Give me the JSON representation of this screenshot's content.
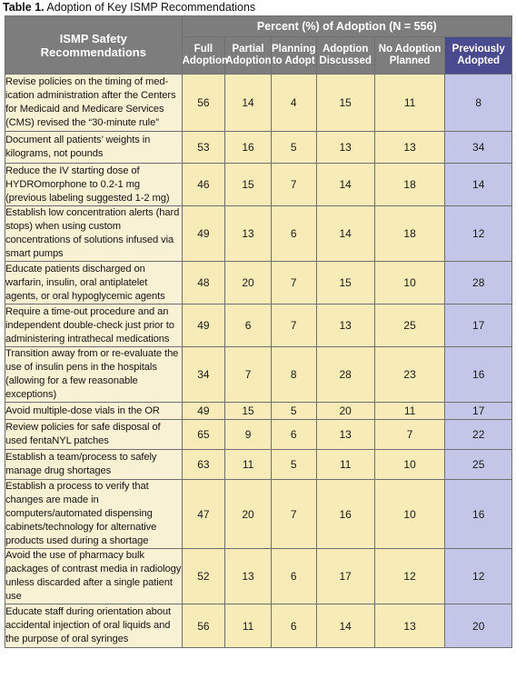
{
  "caption": {
    "label": "Table 1.",
    "text": "Adoption of Key ISMP Recommendations"
  },
  "header": {
    "rec_label": "ISMP Safety Recommendations",
    "group_label": "Percent (%) of Adoption  (N = 556)",
    "columns": [
      "Full Adoption",
      "Partial Adoption",
      "Planning to Adopt",
      "Adoption Discussed",
      "No Adoption Planned",
      "Previously Adopted"
    ]
  },
  "rows": [
    {
      "rec": "Revise policies on the timing of med-ication administration after the Centers for Medicaid and Medicare Services (CMS) revised the “30-minute rule”",
      "values": [
        56,
        14,
        4,
        15,
        11,
        8
      ]
    },
    {
      "rec": "Document all patients’ weights in kilograms, not pounds",
      "values": [
        53,
        16,
        5,
        13,
        13,
        34
      ]
    },
    {
      "rec": "Reduce the IV starting dose of HYDROmorphone to 0.2-1 mg (previous labeling suggested 1-2 mg)",
      "values": [
        46,
        15,
        7,
        14,
        18,
        14
      ]
    },
    {
      "rec": "Establish low concentration alerts (hard stops) when using custom concentrations of solutions infused via smart pumps",
      "values": [
        49,
        13,
        6,
        14,
        18,
        12
      ]
    },
    {
      "rec": "Educate patients discharged on warfarin, insulin, oral antiplatelet agents, or oral hypoglycemic agents",
      "values": [
        48,
        20,
        7,
        15,
        10,
        28
      ]
    },
    {
      "rec": "Require a time-out procedure and an independent double-check just prior to administering intrathecal medications",
      "values": [
        49,
        6,
        7,
        13,
        25,
        17
      ]
    },
    {
      "rec": "Transition away from or re-evaluate the use of insulin pens in the hospitals (allowing for a few reasonable exceptions)",
      "values": [
        34,
        7,
        8,
        28,
        23,
        16
      ]
    },
    {
      "rec": "Avoid multiple-dose vials in the OR",
      "values": [
        49,
        15,
        5,
        20,
        11,
        17
      ]
    },
    {
      "rec": "Review policies for safe disposal of used fentaNYL patches",
      "values": [
        65,
        9,
        6,
        13,
        7,
        22
      ]
    },
    {
      "rec": "Establish a team/process to safely manage drug shortages",
      "values": [
        63,
        11,
        5,
        11,
        10,
        25
      ]
    },
    {
      "rec": "Establish a process to verify that changes are made in computers/automated dispensing cabinets/technology for alternative products used during a shortage",
      "values": [
        47,
        20,
        7,
        16,
        10,
        16
      ]
    },
    {
      "rec": "Avoid the use of pharmacy bulk packages of contrast media in radiology unless discarded after a single patient use",
      "values": [
        52,
        13,
        6,
        17,
        12,
        12
      ]
    },
    {
      "rec": "Educate staff during orientation about accidental injection of oral liquids and the purpose of oral syringes",
      "values": [
        56,
        11,
        6,
        14,
        13,
        20
      ]
    }
  ],
  "colors": {
    "header_bg": "#7d7d7d",
    "prev_header_bg": "#4a4b8f",
    "rec_cell": "#f9f1d3",
    "value_cell": "#f7ecb7",
    "prev_cell": "#c4c6e8"
  }
}
